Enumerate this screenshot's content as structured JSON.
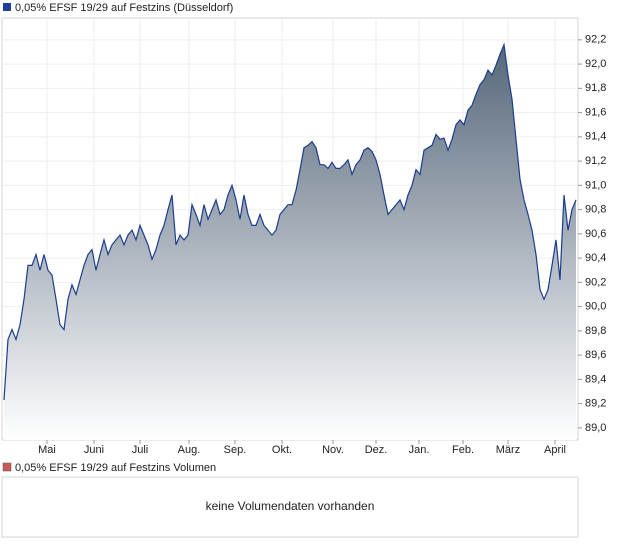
{
  "chart_data": {
    "type": "area",
    "title": "0,05% EFSF 19/29 auf Festzins (Düsseldorf)",
    "marker_color": "#1f3f99",
    "line_color": "#1a3d8f",
    "fill_top_color": "#56677a",
    "values": [
      89.23,
      89.73,
      89.81,
      89.73,
      89.85,
      90.06,
      90.34,
      90.34,
      90.43,
      90.3,
      90.43,
      90.3,
      90.26,
      90.06,
      89.85,
      89.81,
      90.06,
      90.18,
      90.1,
      90.22,
      90.34,
      90.43,
      90.47,
      90.3,
      90.43,
      90.55,
      90.43,
      90.51,
      90.55,
      90.59,
      90.51,
      90.59,
      90.63,
      90.55,
      90.67,
      90.59,
      90.51,
      90.39,
      90.47,
      90.59,
      90.67,
      90.8,
      90.92,
      90.51,
      90.59,
      90.55,
      90.59,
      90.84,
      90.76,
      90.67,
      90.84,
      90.72,
      90.8,
      90.88,
      90.76,
      90.8,
      90.92,
      91.0,
      90.88,
      90.72,
      90.92,
      90.76,
      90.67,
      90.67,
      90.76,
      90.67,
      90.63,
      90.59,
      90.63,
      90.76,
      90.8,
      90.84,
      90.84,
      90.96,
      91.13,
      91.31,
      91.33,
      91.36,
      91.31,
      91.17,
      91.17,
      91.14,
      91.19,
      91.14,
      91.14,
      91.17,
      91.21,
      91.09,
      91.17,
      91.21,
      91.29,
      91.31,
      91.28,
      91.21,
      91.09,
      90.92,
      90.76,
      90.8,
      90.84,
      90.88,
      90.8,
      90.92,
      91.0,
      91.13,
      91.09,
      91.29,
      91.31,
      91.33,
      91.42,
      91.38,
      91.39,
      91.29,
      91.38,
      91.5,
      91.54,
      91.5,
      91.62,
      91.66,
      91.75,
      91.83,
      91.87,
      91.95,
      91.91,
      91.99,
      92.08,
      92.16,
      91.91,
      91.71,
      91.38,
      91.05,
      90.88,
      90.76,
      90.63,
      90.43,
      90.14,
      90.06,
      90.14,
      90.34,
      90.55,
      90.22,
      90.92,
      90.63,
      90.8,
      90.88
    ],
    "xlim": [
      0,
      143
    ],
    "xticks": [
      {
        "value": 10.75,
        "label": "Mai"
      },
      {
        "value": 22.5,
        "label": "Juni"
      },
      {
        "value": 34,
        "label": "Juli"
      },
      {
        "value": 46.25,
        "label": "Aug."
      },
      {
        "value": 57.75,
        "label": "Sep."
      },
      {
        "value": 69.5,
        "label": "Okt."
      },
      {
        "value": 82.25,
        "label": "Nov."
      },
      {
        "value": 93,
        "label": "Dez."
      },
      {
        "value": 103.75,
        "label": "Jan."
      },
      {
        "value": 114.75,
        "label": "Feb."
      },
      {
        "value": 126,
        "label": "März"
      },
      {
        "value": 137.75,
        "label": "April"
      }
    ],
    "ylim": [
      88.9,
      92.38
    ],
    "yticks": [
      {
        "value": 89.0,
        "label": "89,0"
      },
      {
        "value": 89.2,
        "label": "89,2"
      },
      {
        "value": 89.4,
        "label": "89,4"
      },
      {
        "value": 89.6,
        "label": "89,6"
      },
      {
        "value": 89.8,
        "label": "89,8"
      },
      {
        "value": 90.0,
        "label": "90,0"
      },
      {
        "value": 90.2,
        "label": "90,2"
      },
      {
        "value": 90.4,
        "label": "90,4"
      },
      {
        "value": 90.6,
        "label": "90,6"
      },
      {
        "value": 90.8,
        "label": "90,8"
      },
      {
        "value": 91.0,
        "label": "91,0"
      },
      {
        "value": 91.2,
        "label": "91,2"
      },
      {
        "value": 91.4,
        "label": "91,4"
      },
      {
        "value": 91.6,
        "label": "91,6"
      },
      {
        "value": 91.8,
        "label": "91,8"
      },
      {
        "value": 92.0,
        "label": "92,0"
      },
      {
        "value": 92.2,
        "label": "92,2"
      }
    ],
    "grid": true
  },
  "volume_panel": {
    "title": "0,05% EFSF 19/29 auf Festzins Volumen",
    "marker_color": "#c85a5a",
    "message": "keine Volumendaten vorhanden"
  }
}
